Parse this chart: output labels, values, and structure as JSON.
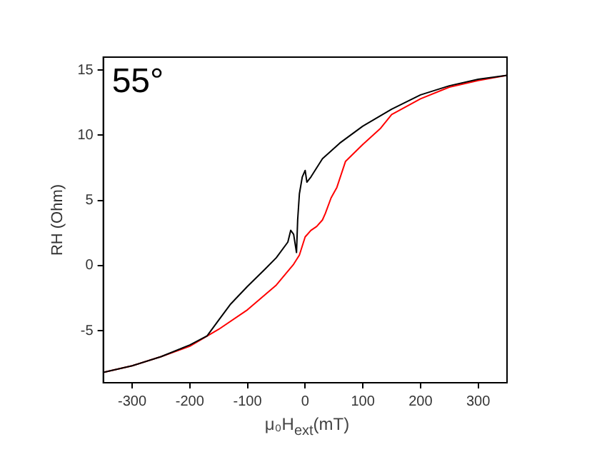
{
  "chart_data": {
    "type": "line",
    "xlabel": "μ₀H$_{ext}$(mT)",
    "ylabel": "RH (Ohm)",
    "annotations": [
      "55°"
    ],
    "xlim": [
      -350,
      350
    ],
    "xticks": [
      -300,
      -200,
      -100,
      0,
      100,
      200,
      300
    ],
    "ylim": [
      -9,
      16
    ],
    "yticks": [
      -5,
      0,
      5,
      10,
      15
    ],
    "grid": false,
    "legend": false,
    "marker": "none",
    "line_style": "solid",
    "series": [
      {
        "color": "#000000",
        "x": [
          -350,
          -300,
          -250,
          -200,
          -170,
          -150,
          -130,
          -100,
          -70,
          -50,
          -30,
          -25,
          -20,
          -15,
          -13,
          -10,
          -5,
          0,
          3,
          10,
          30,
          60,
          100,
          150,
          200,
          250,
          300,
          350
        ],
        "values": [
          -8.2,
          -7.7,
          -7.0,
          -6.1,
          -5.4,
          -4.2,
          -3.0,
          -1.6,
          -0.3,
          0.6,
          1.8,
          2.7,
          2.4,
          1.0,
          3.5,
          5.5,
          6.8,
          7.3,
          6.4,
          6.8,
          8.2,
          9.4,
          10.7,
          12.0,
          13.1,
          13.8,
          14.3,
          14.6
        ]
      },
      {
        "color": "#ff0000",
        "x": [
          -350,
          -300,
          -250,
          -200,
          -150,
          -100,
          -50,
          -20,
          -10,
          0,
          10,
          20,
          30,
          35,
          45,
          55,
          70,
          100,
          130,
          150,
          200,
          250,
          300,
          350
        ],
        "values": [
          -8.2,
          -7.7,
          -7.0,
          -6.2,
          -4.9,
          -3.4,
          -1.5,
          0.1,
          0.8,
          2.2,
          2.7,
          3.0,
          3.5,
          4.0,
          5.2,
          6.0,
          8.0,
          9.3,
          10.5,
          11.6,
          12.8,
          13.7,
          14.2,
          14.6
        ]
      }
    ]
  }
}
